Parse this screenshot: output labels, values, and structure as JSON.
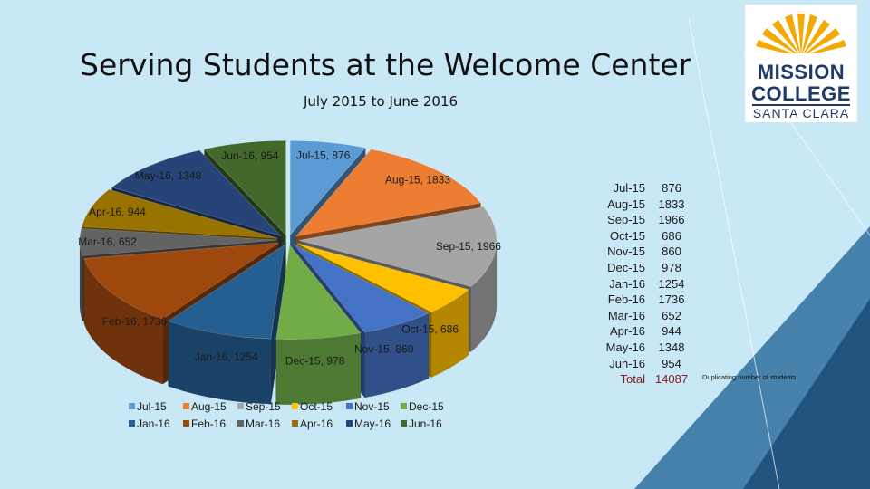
{
  "slide": {
    "title": "Serving Students at the Welcome Center",
    "subtitle": "July 2015 to June 2016",
    "footnote": "Duplicating number of students"
  },
  "logo": {
    "line1": "MISSION",
    "line2": "COLLEGE",
    "line3": "SANTA CLARA"
  },
  "table": {
    "rows": [
      {
        "month": "Jul-15",
        "value": "876"
      },
      {
        "month": "Aug-15",
        "value": "1833"
      },
      {
        "month": "Sep-15",
        "value": "1966"
      },
      {
        "month": "Oct-15",
        "value": "686"
      },
      {
        "month": "Nov-15",
        "value": "860"
      },
      {
        "month": "Dec-15",
        "value": "978"
      },
      {
        "month": "Jan-16",
        "value": "1254"
      },
      {
        "month": "Feb-16",
        "value": "1736"
      },
      {
        "month": "Mar-16",
        "value": "652"
      },
      {
        "month": "Apr-16",
        "value": "944"
      },
      {
        "month": "May-16",
        "value": "1348"
      },
      {
        "month": "Jun-16",
        "value": "954"
      }
    ],
    "total_label": "Total",
    "total_value": "14087"
  },
  "chart_data": {
    "type": "pie",
    "style": "3d-exploded",
    "title": "",
    "categories": [
      "Jul-15",
      "Aug-15",
      "Sep-15",
      "Oct-15",
      "Nov-15",
      "Dec-15",
      "Jan-16",
      "Feb-16",
      "Mar-16",
      "Apr-16",
      "May-16",
      "Jun-16"
    ],
    "values": [
      876,
      1833,
      1966,
      686,
      860,
      978,
      1254,
      1736,
      652,
      944,
      1348,
      954
    ],
    "data_labels": [
      "Jul-15, 876",
      "Aug-15, 1833",
      "Sep-15, 1966",
      "Oct-15, 686",
      "Nov-15, 860",
      "Dec-15, 978",
      "Jan-16, 1254",
      "Feb-16, 1736",
      "Mar-16, 652",
      "Apr-16, 944",
      "May-16, 1348",
      "Jun-16, 954"
    ],
    "colors": [
      "#5b9bd5",
      "#ed7d31",
      "#a5a5a5",
      "#ffc000",
      "#4472c4",
      "#70ad47",
      "#255e91",
      "#9e480e",
      "#636363",
      "#997300",
      "#264478",
      "#43682b"
    ],
    "legend_position": "bottom-left"
  }
}
